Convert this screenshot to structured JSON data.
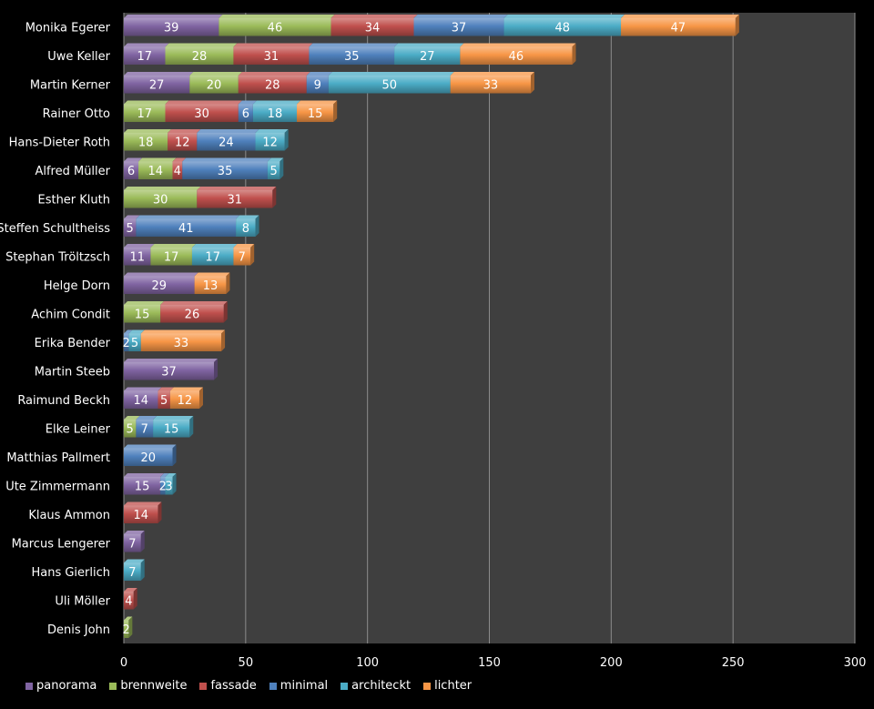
{
  "chart_data": {
    "type": "bar",
    "orientation": "horizontal",
    "stacked": true,
    "title": "",
    "xlabel": "",
    "ylabel": "",
    "xlim": [
      0,
      300
    ],
    "xticks": [
      0,
      50,
      100,
      150,
      200,
      250,
      300
    ],
    "grid": true,
    "legend_position": "bottom",
    "categories": [
      "Monika Egerer",
      "Uwe Keller",
      "Martin Kerner",
      "Rainer Otto",
      "Hans-Dieter Roth",
      "Alfred Müller",
      "Esther Kluth",
      "Steffen Schultheiss",
      "Stephan Tröltzsch",
      "Helge Dorn",
      "Achim Condit",
      "Erika Bender",
      "Martin Steeb",
      "Raimund Beckh",
      "Elke Leiner",
      "Matthias Pallmert",
      "Ute Zimmermann",
      "Klaus Ammon",
      "Marcus Lengerer",
      "Hans Gierlich",
      "Uli Möller",
      "Denis John"
    ],
    "series": [
      {
        "name": "panorama",
        "color": "#8064a2",
        "values": [
          39,
          17,
          27,
          0,
          0,
          6,
          0,
          5,
          11,
          29,
          0,
          0,
          37,
          14,
          0,
          0,
          15,
          0,
          7,
          0,
          0,
          0
        ]
      },
      {
        "name": "brennweite",
        "color": "#9bbb59",
        "values": [
          46,
          28,
          20,
          17,
          18,
          14,
          30,
          0,
          17,
          0,
          15,
          0,
          0,
          0,
          5,
          0,
          0,
          0,
          0,
          0,
          0,
          2
        ]
      },
      {
        "name": "fassade",
        "color": "#c0504d",
        "values": [
          34,
          31,
          28,
          30,
          12,
          4,
          31,
          0,
          0,
          0,
          26,
          0,
          0,
          5,
          0,
          0,
          0,
          14,
          0,
          0,
          4,
          0
        ]
      },
      {
        "name": "minimal",
        "color": "#4f81bd",
        "values": [
          37,
          35,
          9,
          6,
          24,
          35,
          0,
          41,
          0,
          0,
          0,
          2,
          0,
          0,
          7,
          20,
          2,
          0,
          0,
          0,
          0,
          0
        ]
      },
      {
        "name": "architeckt",
        "color": "#4bacc6",
        "values": [
          48,
          27,
          50,
          18,
          12,
          5,
          0,
          8,
          17,
          0,
          0,
          5,
          0,
          0,
          15,
          0,
          3,
          0,
          0,
          7,
          0,
          0
        ]
      },
      {
        "name": "lichter",
        "color": "#f79646",
        "values": [
          47,
          46,
          33,
          15,
          0,
          0,
          0,
          0,
          7,
          13,
          0,
          33,
          0,
          12,
          0,
          0,
          0,
          0,
          0,
          0,
          0,
          0
        ]
      }
    ]
  }
}
